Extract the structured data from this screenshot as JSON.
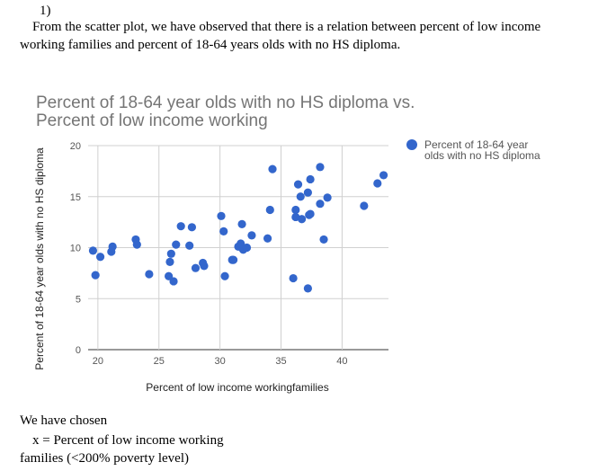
{
  "question_number": "1)",
  "paragraph": {
    "line1": "From the scatter plot, we have observed that  there is a relation between percent of low income",
    "line2": "working families and percent of 18-64 years olds with no HS diploma."
  },
  "chart_data": {
    "type": "scatter",
    "title_lines": [
      "Percent of 18-64 year olds with no HS diploma vs.",
      "Percent of low income working"
    ],
    "xlabel": "Percent of low income workingfamilies",
    "ylabel": "Percent of 18-64 year olds with no HS diploma",
    "xlim": [
      19.2,
      43.8
    ],
    "ylim": [
      0,
      20
    ],
    "xticks": [
      20,
      25,
      30,
      35,
      40
    ],
    "yticks": [
      0,
      5,
      10,
      15,
      20
    ],
    "grid": true,
    "legend_position": "right",
    "series": [
      {
        "name": "Percent of 18-64 year olds with no HS diploma",
        "color": "#3366cc",
        "points": [
          [
            19.6,
            9.7
          ],
          [
            19.8,
            7.3
          ],
          [
            20.2,
            9.1
          ],
          [
            21.1,
            9.6
          ],
          [
            21.2,
            10.1
          ],
          [
            23.1,
            10.8
          ],
          [
            23.2,
            10.3
          ],
          [
            24.2,
            7.4
          ],
          [
            25.8,
            7.2
          ],
          [
            25.9,
            8.6
          ],
          [
            26.0,
            9.4
          ],
          [
            26.2,
            6.7
          ],
          [
            26.4,
            10.3
          ],
          [
            26.8,
            12.1
          ],
          [
            27.5,
            10.2
          ],
          [
            27.7,
            12.0
          ],
          [
            28.0,
            8.0
          ],
          [
            28.6,
            8.5
          ],
          [
            28.7,
            8.2
          ],
          [
            30.1,
            13.1
          ],
          [
            30.3,
            11.6
          ],
          [
            30.4,
            7.2
          ],
          [
            31.0,
            8.8
          ],
          [
            31.1,
            8.8
          ],
          [
            31.5,
            10.1
          ],
          [
            31.7,
            10.4
          ],
          [
            31.8,
            12.3
          ],
          [
            31.9,
            9.8
          ],
          [
            32.2,
            10.0
          ],
          [
            32.6,
            11.2
          ],
          [
            33.9,
            10.9
          ],
          [
            34.1,
            13.7
          ],
          [
            34.3,
            17.7
          ],
          [
            36.0,
            7.0
          ],
          [
            36.2,
            13.0
          ],
          [
            36.2,
            13.7
          ],
          [
            36.4,
            16.2
          ],
          [
            36.6,
            15.0
          ],
          [
            36.7,
            12.8
          ],
          [
            37.2,
            6.0
          ],
          [
            37.2,
            15.4
          ],
          [
            37.3,
            13.2
          ],
          [
            37.4,
            16.7
          ],
          [
            37.4,
            13.3
          ],
          [
            38.2,
            17.9
          ],
          [
            38.2,
            14.3
          ],
          [
            38.5,
            10.8
          ],
          [
            38.8,
            14.9
          ],
          [
            41.8,
            14.1
          ],
          [
            42.9,
            16.3
          ],
          [
            43.4,
            17.1
          ]
        ]
      }
    ]
  },
  "chosen_text": "We  have chosen",
  "x_definition": {
    "line1": "x = Percent of low income working",
    "line2": "families (<200% poverty level)"
  }
}
